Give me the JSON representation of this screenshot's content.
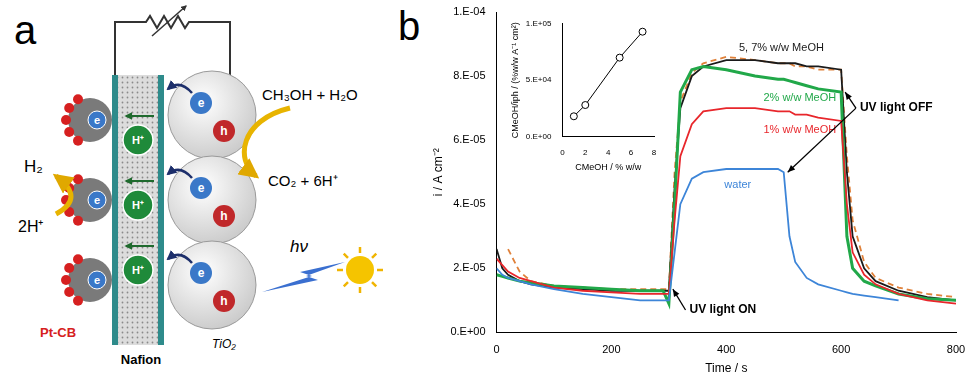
{
  "panel_a": {
    "label": "a",
    "membrane": "Nafion",
    "cathode": "Pt-CB",
    "anode": "TiO₂",
    "light": "hν",
    "anode_reaction": {
      "in": "CH₃OH + H₂O",
      "out": "CO₂ + 6H⁺"
    },
    "cathode_reaction": {
      "in": "2H⁺",
      "out": "H₂"
    },
    "electron": "e",
    "hole": "h",
    "proton": "H⁺"
  },
  "chart_data": [
    {
      "panel": "b",
      "type": "line",
      "x_label": "Time / s",
      "y_label": "i / A cm⁻²",
      "x": [
        0,
        10,
        20,
        40,
        60,
        100,
        150,
        200,
        250,
        290,
        300,
        310,
        320,
        340,
        360,
        400,
        450,
        490,
        500,
        510,
        520,
        540,
        560,
        600,
        610,
        620,
        640,
        660,
        700,
        750,
        800
      ],
      "series": [
        {
          "name": "water",
          "color": "#3d85d8",
          "line_style": "solid",
          "values": [
            2e-05,
            1.8e-05,
            1.7e-05,
            1.6e-05,
            1.5e-05,
            1.35e-05,
            1.2e-05,
            1.1e-05,
            1e-05,
            1e-05,
            1e-05,
            2.5e-05,
            4e-05,
            4.8e-05,
            5e-05,
            5.1e-05,
            5.1e-05,
            5.1e-05,
            5e-05,
            3e-05,
            2.2e-05,
            1.7e-05,
            1.5e-05,
            1.3e-05,
            1.25e-05,
            1.2e-05,
            1.15e-05,
            1.1e-05,
            1e-05,
            null,
            null
          ]
        },
        {
          "name": "1% w/w MeOH",
          "color": "#e8262b",
          "line_style": "solid",
          "values": [
            2.3e-05,
            2.1e-05,
            1.9e-05,
            1.7e-05,
            1.6e-05,
            1.4e-05,
            1.3e-05,
            1.25e-05,
            1.2e-05,
            1.2e-05,
            1.2e-05,
            3.5e-05,
            5.5e-05,
            6.5e-05,
            6.9e-05,
            7e-05,
            7e-05,
            6.9e-05,
            6.9e-05,
            6.9e-05,
            6.8e-05,
            6.8e-05,
            6.7e-05,
            6.6e-05,
            4e-05,
            2.5e-05,
            1.8e-05,
            1.5e-05,
            1.2e-05,
            1e-05,
            9e-06
          ]
        },
        {
          "name": "2% w/w MeOH",
          "color": "#21a849",
          "line_style": "solid",
          "values": [
            1.8e-05,
            1.75e-05,
            1.7e-05,
            1.6e-05,
            1.55e-05,
            1.45e-05,
            1.4e-05,
            1.35e-05,
            1.3e-05,
            1.3e-05,
            9e-06,
            4e-05,
            7.5e-05,
            8.2e-05,
            8.3e-05,
            8.2e-05,
            8e-05,
            7.9e-05,
            7.9e-05,
            7.85e-05,
            7.8e-05,
            7.7e-05,
            7.6e-05,
            7.5e-05,
            3e-05,
            2e-05,
            1.6e-05,
            1.45e-05,
            1.2e-05,
            1.05e-05,
            1e-05
          ]
        },
        {
          "name": "5, 7% w/w MeOH",
          "color": "#1a1a1a",
          "line_style": "solid",
          "values": [
            2.6e-05,
            2e-05,
            1.8e-05,
            1.6e-05,
            1.5e-05,
            1.4e-05,
            1.35e-05,
            1.3e-05,
            1.3e-05,
            1.3e-05,
            1.3e-05,
            4.5e-05,
            7e-05,
            8e-05,
            8.3e-05,
            8.5e-05,
            8.5e-05,
            8.4e-05,
            8.4e-05,
            8.4e-05,
            8.4e-05,
            8.3e-05,
            8.3e-05,
            8.2e-05,
            5e-05,
            3e-05,
            2e-05,
            1.6e-05,
            1.3e-05,
            1.1e-05,
            1e-05
          ]
        },
        {
          "color": "#e0813a",
          "line_style": "dashed",
          "values": [
            null,
            null,
            2.6e-05,
            1.9e-05,
            1.6e-05,
            1.45e-05,
            1.4e-05,
            1.35e-05,
            1.35e-05,
            1.35e-05,
            1.35e-05,
            5e-05,
            7.2e-05,
            8.1e-05,
            8.4e-05,
            8.6e-05,
            8.5e-05,
            8.4e-05,
            8.4e-05,
            8.4e-05,
            8.3e-05,
            8.3e-05,
            8.2e-05,
            8.2e-05,
            5.5e-05,
            3.5e-05,
            2.2e-05,
            1.7e-05,
            1.4e-05,
            1.2e-05,
            1.1e-05
          ]
        }
      ],
      "xlim": [
        0,
        800
      ],
      "xticks": [
        0,
        200,
        400,
        600,
        800
      ],
      "ylim": [
        0,
        0.0001
      ],
      "yticks": [
        {
          "value": 0,
          "label": "0.E+00"
        },
        {
          "value": 2e-05,
          "label": "2.E-05"
        },
        {
          "value": 4e-05,
          "label": "4.E-05"
        },
        {
          "value": 6e-05,
          "label": "6.E-05"
        },
        {
          "value": 8e-05,
          "label": "8.E-05"
        },
        {
          "value": 0.0001,
          "label": "1.E-04"
        }
      ],
      "grid": false,
      "annotations": [
        {
          "text": "UV light ON",
          "x": 300
        },
        {
          "text": "UV light OFF",
          "x": [
            500,
            600
          ]
        }
      ]
    },
    {
      "type": "line",
      "x_label": "CMeOH / % w/w",
      "y_label": "CMeOH/iph / (%w/w A⁻¹ cm²)",
      "x": [
        1,
        2,
        5,
        7
      ],
      "series": [
        {
          "color": "#000000",
          "marker": "circle",
          "line_style": "solid",
          "values": [
            18000,
            28000,
            70000,
            93000
          ]
        }
      ],
      "xlim": [
        0,
        8
      ],
      "xticks": [
        0,
        2,
        4,
        6,
        8
      ],
      "ylim": [
        0,
        100000
      ],
      "yticks": [
        {
          "value": 0,
          "label": "0.E+00"
        },
        {
          "value": 50000,
          "label": "5.E+04"
        },
        {
          "value": 100000,
          "label": "1.E+05"
        }
      ],
      "grid": false
    }
  ]
}
